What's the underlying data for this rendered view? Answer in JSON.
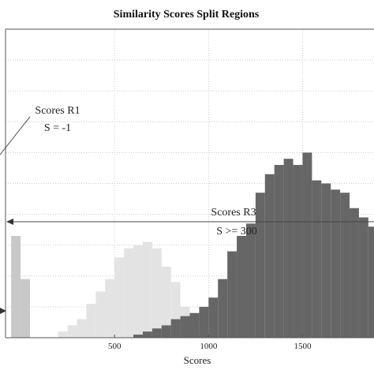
{
  "chart_data": {
    "type": "bar",
    "title": "Similarity Scores Split Regions",
    "xlabel": "Scores",
    "ylabel": "",
    "xlim": [
      -80,
      1880
    ],
    "x_ticks": [
      500,
      1000,
      1500
    ],
    "x_tick_labels": [
      "500",
      "1000",
      "1500"
    ],
    "grid": true,
    "bin_width": 50,
    "series": [
      {
        "color": "#c8c8c8",
        "x": [
          -50,
          0
        ],
        "values": [
          0.33,
          0.19
        ]
      },
      {
        "color": "#e3e3e3",
        "x": [
          200,
          250,
          300,
          350,
          400,
          450,
          500,
          550,
          600,
          650,
          700,
          750,
          800,
          850,
          900
        ],
        "values": [
          0.02,
          0.04,
          0.06,
          0.11,
          0.15,
          0.19,
          0.26,
          0.29,
          0.3,
          0.31,
          0.29,
          0.23,
          0.18,
          0.1,
          0.03
        ]
      },
      {
        "color": "#666666",
        "x": [
          600,
          650,
          700,
          750,
          800,
          850,
          900,
          950,
          1000,
          1050,
          1100,
          1150,
          1200,
          1250,
          1300,
          1350,
          1400,
          1450,
          1500,
          1550,
          1600,
          1650,
          1700,
          1750,
          1800,
          1850
        ],
        "values": [
          0.01,
          0.02,
          0.03,
          0.04,
          0.06,
          0.07,
          0.08,
          0.1,
          0.13,
          0.19,
          0.28,
          0.33,
          0.37,
          0.47,
          0.53,
          0.56,
          0.58,
          0.56,
          0.6,
          0.51,
          0.5,
          0.48,
          0.47,
          0.42,
          0.39,
          0.36
        ]
      }
    ],
    "annotations": {
      "r1": {
        "line1": "Scores R1",
        "line2": "S = -1"
      },
      "r3": {
        "line1": "Scores R3",
        "line2": "S >= 300"
      }
    }
  }
}
